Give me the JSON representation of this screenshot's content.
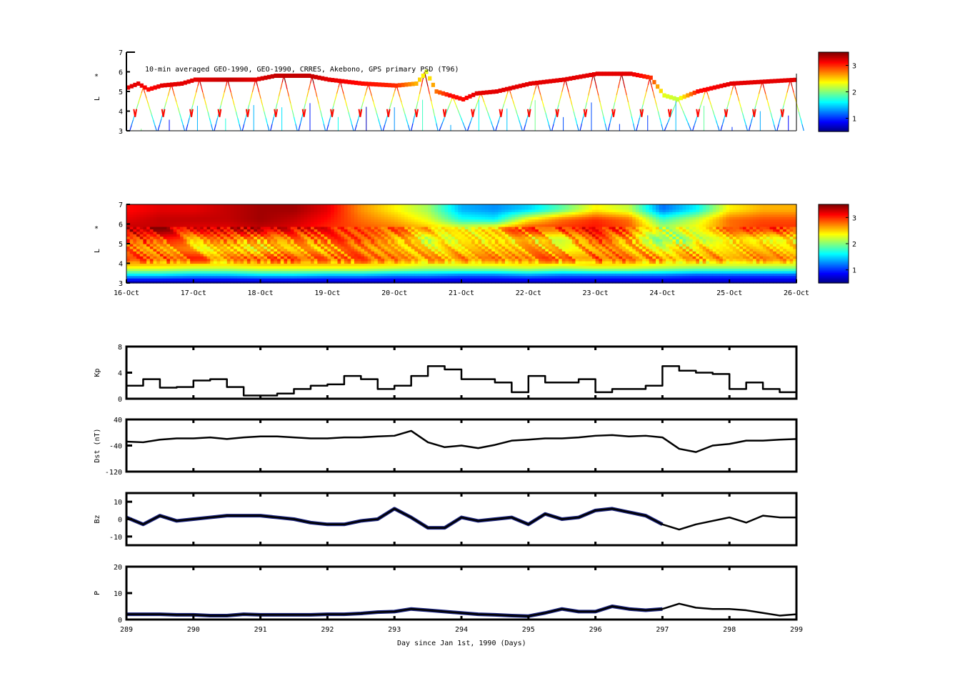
{
  "chart_data": [
    {
      "type": "heatmap",
      "panel": "psd-tracks",
      "title": "10-min averaged GEO-1990, GEO-1990, CRRES, Akebono, GPS  primary PSD (T96)",
      "ylabel": "L*",
      "ylim": [
        3,
        7
      ],
      "yticks": [
        3,
        4,
        5,
        6,
        7
      ],
      "xlim": [
        289,
        299
      ],
      "colorbar": {
        "range": [
          0.5,
          3.5
        ],
        "ticks": [
          1,
          2,
          3
        ]
      },
      "geo_track": {
        "days": [
          289,
          289.15,
          289.3,
          289.5,
          289.8,
          290,
          290.5,
          290.9,
          291.2,
          291.7,
          292,
          292.5,
          293,
          293.3,
          293.45,
          293.6,
          293.8,
          294,
          294.2,
          294.5,
          295,
          295.5,
          296,
          296.5,
          296.8,
          297,
          297.2,
          297.5,
          298,
          298.5,
          299
        ],
        "L": [
          5.2,
          5.4,
          5.1,
          5.3,
          5.4,
          5.6,
          5.6,
          5.6,
          5.8,
          5.8,
          5.6,
          5.4,
          5.3,
          5.4,
          6.0,
          5.0,
          4.8,
          4.6,
          4.9,
          5.0,
          5.4,
          5.6,
          5.9,
          5.9,
          5.7,
          4.8,
          4.6,
          5.0,
          5.4,
          5.5,
          5.6
        ],
        "psd": [
          3.2,
          3.2,
          3.1,
          3.2,
          3.2,
          3.2,
          3.3,
          3.2,
          3.3,
          3.3,
          3.2,
          3.1,
          3.0,
          2.6,
          2.3,
          2.8,
          3.1,
          3.1,
          3.2,
          3.2,
          3.2,
          3.2,
          3.2,
          3.2,
          3.0,
          2.3,
          2.2,
          3.1,
          3.2,
          3.2,
          3.2
        ]
      },
      "orbit_period_days": 0.42
    },
    {
      "type": "heatmap",
      "panel": "psd-reconstruction",
      "ylabel": "L*",
      "ylim": [
        3,
        7
      ],
      "yticks": [
        3,
        4,
        5,
        6,
        7
      ],
      "xlim": [
        289,
        299
      ],
      "xtick_labels": [
        "16-Oct",
        "17-Oct",
        "18-Oct",
        "19-Oct",
        "20-Oct",
        "21-Oct",
        "22-Oct",
        "23-Oct",
        "24-Oct",
        "25-Oct",
        "26-Oct"
      ],
      "colorbar": {
        "range": [
          0.5,
          3.5
        ],
        "ticks": [
          1,
          2,
          3
        ]
      },
      "grid_days_step": 0.5,
      "grid_L": [
        3.1,
        3.4,
        3.75,
        4.25,
        4.75,
        5.25,
        5.75,
        6.25,
        6.75
      ],
      "grid_values": [
        [
          0.7,
          0.7,
          0.7,
          0.7,
          0.7,
          0.7,
          0.7,
          0.7,
          0.7,
          0.7,
          0.7,
          0.7,
          0.7,
          0.7,
          0.7,
          0.7,
          0.7,
          0.7,
          0.7,
          0.7,
          0.7
        ],
        [
          1.5,
          1.5,
          1.4,
          1.4,
          1.5,
          1.5,
          1.4,
          1.4,
          1.3,
          1.3,
          1.2,
          1.2,
          1.3,
          1.2,
          1.2,
          1.2,
          1.2,
          1.1,
          1.1,
          1.1,
          1.1
        ],
        [
          2.3,
          2.3,
          2.2,
          2.2,
          2.3,
          2.3,
          2.3,
          2.3,
          2.2,
          2.1,
          2.1,
          2.1,
          2.2,
          2.1,
          2.2,
          2.2,
          2.1,
          2.0,
          2.0,
          2.0,
          2.0
        ],
        [
          3.0,
          2.9,
          2.9,
          2.8,
          2.9,
          2.9,
          2.9,
          2.8,
          2.8,
          2.6,
          2.7,
          2.8,
          2.8,
          2.8,
          2.9,
          2.8,
          2.7,
          2.7,
          2.7,
          2.7,
          2.7
        ],
        [
          2.8,
          2.7,
          2.5,
          2.5,
          2.4,
          2.6,
          2.6,
          2.7,
          2.6,
          2.4,
          2.5,
          2.6,
          2.6,
          2.5,
          2.7,
          2.6,
          2.4,
          2.5,
          2.5,
          2.5,
          2.5
        ],
        [
          3.0,
          2.9,
          2.7,
          2.8,
          2.6,
          2.8,
          2.8,
          2.9,
          2.6,
          2.2,
          2.4,
          2.5,
          2.4,
          2.4,
          2.9,
          2.6,
          2.0,
          2.2,
          2.4,
          2.3,
          2.4
        ],
        [
          3.3,
          3.3,
          3.2,
          3.2,
          3.3,
          3.2,
          3.0,
          2.9,
          2.8,
          2.6,
          2.4,
          2.6,
          3.0,
          3.0,
          3.1,
          2.9,
          2.2,
          2.4,
          2.8,
          3.0,
          3.0
        ],
        [
          3.2,
          3.3,
          3.3,
          3.3,
          3.4,
          3.3,
          3.1,
          2.8,
          2.6,
          2.3,
          1.7,
          1.6,
          2.4,
          2.8,
          3.0,
          2.8,
          1.8,
          2.2,
          2.8,
          2.9,
          2.9
        ],
        [
          3.1,
          3.2,
          3.2,
          3.3,
          3.4,
          3.4,
          3.2,
          2.7,
          2.4,
          2.1,
          1.4,
          1.3,
          1.5,
          1.9,
          2.4,
          2.2,
          1.2,
          1.6,
          2.4,
          2.6,
          2.6
        ]
      ]
    },
    {
      "type": "line",
      "panel": "kp",
      "ylabel": "Kp",
      "ylim": [
        0,
        8
      ],
      "yticks": [
        0,
        4,
        8
      ],
      "step": true,
      "x_start": 289,
      "x_step": 0.25,
      "values": [
        2,
        3,
        1.7,
        1.8,
        2.8,
        3,
        1.8,
        0.5,
        0.5,
        0.8,
        1.5,
        2,
        2.2,
        3.5,
        3,
        1.5,
        2,
        3.5,
        5,
        4.5,
        3,
        3,
        2.5,
        1,
        3.5,
        2.5,
        2.5,
        3,
        1,
        1.5,
        1.5,
        2,
        5,
        4.3,
        4,
        3.8,
        1.5,
        2.5,
        1.5,
        1,
        1.5
      ]
    },
    {
      "type": "line",
      "panel": "dst",
      "ylabel": "Dst (nT)",
      "ylim": [
        -120,
        40
      ],
      "yticks": [
        -120,
        -40,
        40
      ],
      "x_start": 289,
      "x_step": 0.25,
      "values": [
        -28,
        -30,
        -22,
        -18,
        -18,
        -15,
        -20,
        -15,
        -12,
        -12,
        -15,
        -18,
        -18,
        -15,
        -15,
        -12,
        -10,
        5,
        -30,
        -45,
        -40,
        -48,
        -38,
        -25,
        -22,
        -18,
        -18,
        -15,
        -10,
        -8,
        -12,
        -10,
        -15,
        -50,
        -60,
        -40,
        -35,
        -25,
        -25,
        -22,
        -20
      ]
    },
    {
      "type": "line",
      "panel": "bz",
      "ylabel": "Bz",
      "ylim": [
        -15,
        15
      ],
      "yticks": [
        -10,
        0,
        10
      ],
      "x_start": 289,
      "x_step": 0.25,
      "hires_coverage": [
        289,
        296.8
      ],
      "values": [
        1,
        -3,
        2,
        -1,
        0,
        1,
        2,
        2,
        2,
        1,
        0,
        -2,
        -3,
        -3,
        -1,
        0,
        6,
        1,
        -5,
        -5,
        1,
        -1,
        0,
        1,
        -3,
        3,
        0,
        1,
        5,
        6,
        4,
        2,
        -3,
        -6,
        -3,
        -1,
        1,
        -2,
        2,
        1,
        1
      ]
    },
    {
      "type": "line",
      "panel": "p",
      "ylabel": "P",
      "ylim": [
        0,
        20
      ],
      "yticks": [
        0,
        10,
        20
      ],
      "x_start": 289,
      "x_step": 0.25,
      "hires_coverage": [
        289,
        296.8
      ],
      "values": [
        2,
        2,
        2,
        1.8,
        1.8,
        1.5,
        1.5,
        2,
        1.8,
        1.8,
        1.8,
        1.8,
        2,
        2,
        2.3,
        2.8,
        3,
        4,
        3.5,
        3,
        2.5,
        2,
        1.8,
        1.5,
        1.3,
        2.5,
        4,
        3,
        3,
        5,
        4,
        3.5,
        4,
        6,
        4.5,
        4,
        4,
        3.5,
        2.5,
        1.5,
        2
      ],
      "xticks": [
        289,
        290,
        291,
        292,
        293,
        294,
        295,
        296,
        297,
        298,
        299
      ],
      "xlabel": "Day since Jan 1st, 1990 (Days)"
    }
  ],
  "colors": {
    "line": "#000000",
    "hires": "#1a237e"
  }
}
